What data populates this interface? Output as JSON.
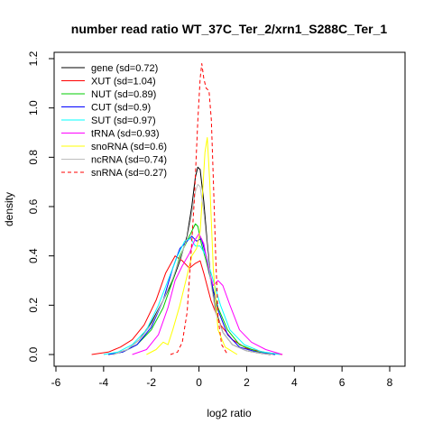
{
  "chart_data": {
    "type": "line",
    "title": "number read ratio WT_37C_Ter_2/xrn1_S288C_Ter_1",
    "xlabel": "log2 ratio",
    "ylabel": "density",
    "xlim": [
      -6,
      8
    ],
    "ylim": [
      0,
      1.2
    ],
    "x_ticks": [
      -6,
      -4,
      -2,
      0,
      2,
      4,
      6,
      8
    ],
    "y_ticks": [
      0.0,
      0.2,
      0.4,
      0.6,
      0.8,
      1.0,
      1.2
    ],
    "x_tick_labels": [
      "-6",
      "-4",
      "-2",
      "0",
      "2",
      "4",
      "6",
      "8"
    ],
    "y_tick_labels": [
      "0.0",
      "0.2",
      "0.4",
      "0.6",
      "0.8",
      "1.0",
      "1.2"
    ],
    "legend_position": "top-left",
    "grid": false,
    "series": [
      {
        "name": "gene (sd=0.72)",
        "color": "#000000",
        "dash": "solid",
        "points": [
          [
            -3.6,
            0
          ],
          [
            -3.0,
            0.02
          ],
          [
            -2.5,
            0.06
          ],
          [
            -2.0,
            0.13
          ],
          [
            -1.5,
            0.22
          ],
          [
            -1.1,
            0.3
          ],
          [
            -0.8,
            0.38
          ],
          [
            -0.5,
            0.48
          ],
          [
            -0.3,
            0.6
          ],
          [
            -0.15,
            0.72
          ],
          [
            -0.05,
            0.76
          ],
          [
            0.05,
            0.75
          ],
          [
            0.2,
            0.62
          ],
          [
            0.35,
            0.45
          ],
          [
            0.5,
            0.3
          ],
          [
            0.7,
            0.18
          ],
          [
            1.0,
            0.09
          ],
          [
            1.4,
            0.04
          ],
          [
            2.0,
            0.015
          ],
          [
            2.6,
            0.005
          ],
          [
            3.0,
            0
          ]
        ]
      },
      {
        "name": "XUT (sd=1.04)",
        "color": "#ff0000",
        "dash": "solid",
        "points": [
          [
            -4.5,
            0
          ],
          [
            -3.8,
            0.01
          ],
          [
            -3.3,
            0.03
          ],
          [
            -2.8,
            0.06
          ],
          [
            -2.3,
            0.12
          ],
          [
            -1.8,
            0.22
          ],
          [
            -1.4,
            0.33
          ],
          [
            -1.0,
            0.4
          ],
          [
            -0.7,
            0.38
          ],
          [
            -0.4,
            0.35
          ],
          [
            -0.15,
            0.37
          ],
          [
            0.05,
            0.38
          ],
          [
            0.2,
            0.33
          ],
          [
            0.5,
            0.22
          ],
          [
            0.9,
            0.12
          ],
          [
            1.4,
            0.06
          ],
          [
            2.0,
            0.025
          ],
          [
            2.8,
            0.008
          ],
          [
            3.5,
            0
          ]
        ]
      },
      {
        "name": "NUT (sd=0.89)",
        "color": "#00cc00",
        "dash": "solid",
        "points": [
          [
            -3.8,
            0
          ],
          [
            -3.2,
            0.01
          ],
          [
            -2.6,
            0.04
          ],
          [
            -2.0,
            0.1
          ],
          [
            -1.5,
            0.19
          ],
          [
            -1.1,
            0.3
          ],
          [
            -0.8,
            0.4
          ],
          [
            -0.5,
            0.46
          ],
          [
            -0.3,
            0.5
          ],
          [
            -0.15,
            0.53
          ],
          [
            -0.05,
            0.52
          ],
          [
            0.1,
            0.45
          ],
          [
            0.3,
            0.38
          ],
          [
            0.5,
            0.3
          ],
          [
            0.8,
            0.19
          ],
          [
            1.2,
            0.1
          ],
          [
            1.7,
            0.04
          ],
          [
            2.5,
            0.01
          ],
          [
            3.2,
            0
          ]
        ]
      },
      {
        "name": "CUT (sd=0.9)",
        "color": "#0000ff",
        "dash": "solid",
        "points": [
          [
            -3.8,
            0
          ],
          [
            -3.2,
            0.01
          ],
          [
            -2.6,
            0.04
          ],
          [
            -2.0,
            0.11
          ],
          [
            -1.5,
            0.22
          ],
          [
            -1.1,
            0.35
          ],
          [
            -0.8,
            0.43
          ],
          [
            -0.5,
            0.46
          ],
          [
            -0.3,
            0.48
          ],
          [
            -0.1,
            0.46
          ],
          [
            0.1,
            0.47
          ],
          [
            0.3,
            0.4
          ],
          [
            0.5,
            0.3
          ],
          [
            0.8,
            0.18
          ],
          [
            1.2,
            0.08
          ],
          [
            1.7,
            0.03
          ],
          [
            2.5,
            0.008
          ],
          [
            3.2,
            0
          ]
        ]
      },
      {
        "name": "SUT (sd=0.97)",
        "color": "#00ffff",
        "dash": "solid",
        "points": [
          [
            -4.0,
            0
          ],
          [
            -3.4,
            0.01
          ],
          [
            -2.8,
            0.04
          ],
          [
            -2.2,
            0.1
          ],
          [
            -1.7,
            0.2
          ],
          [
            -1.3,
            0.3
          ],
          [
            -0.9,
            0.4
          ],
          [
            -0.6,
            0.46
          ],
          [
            -0.35,
            0.47
          ],
          [
            -0.15,
            0.44
          ],
          [
            0.05,
            0.44
          ],
          [
            0.3,
            0.4
          ],
          [
            0.6,
            0.3
          ],
          [
            0.9,
            0.2
          ],
          [
            1.3,
            0.1
          ],
          [
            1.9,
            0.04
          ],
          [
            2.6,
            0.012
          ],
          [
            3.4,
            0
          ]
        ]
      },
      {
        "name": "tRNA (sd=0.93)",
        "color": "#ff00ff",
        "dash": "solid",
        "points": [
          [
            -2.8,
            0
          ],
          [
            -2.2,
            0.02
          ],
          [
            -1.7,
            0.08
          ],
          [
            -1.3,
            0.19
          ],
          [
            -1.0,
            0.3
          ],
          [
            -0.7,
            0.36
          ],
          [
            -0.4,
            0.41
          ],
          [
            -0.2,
            0.46
          ],
          [
            0.0,
            0.49
          ],
          [
            0.2,
            0.45
          ],
          [
            0.4,
            0.35
          ],
          [
            0.6,
            0.28
          ],
          [
            0.8,
            0.3
          ],
          [
            1.0,
            0.28
          ],
          [
            1.3,
            0.2
          ],
          [
            1.7,
            0.1
          ],
          [
            2.2,
            0.05
          ],
          [
            2.8,
            0.02
          ],
          [
            3.5,
            0
          ]
        ]
      },
      {
        "name": "snoRNA (sd=0.6)",
        "color": "#ffff00",
        "dash": "solid",
        "points": [
          [
            -2.2,
            0
          ],
          [
            -1.8,
            0.02
          ],
          [
            -1.5,
            0.05
          ],
          [
            -1.3,
            0.04
          ],
          [
            -1.1,
            0.1
          ],
          [
            -0.8,
            0.2
          ],
          [
            -0.5,
            0.32
          ],
          [
            -0.3,
            0.4
          ],
          [
            -0.1,
            0.43
          ],
          [
            0.05,
            0.5
          ],
          [
            0.15,
            0.65
          ],
          [
            0.25,
            0.82
          ],
          [
            0.35,
            0.88
          ],
          [
            0.45,
            0.7
          ],
          [
            0.6,
            0.35
          ],
          [
            0.8,
            0.1
          ],
          [
            1.1,
            0.03
          ],
          [
            1.6,
            0
          ]
        ]
      },
      {
        "name": "ncRNA (sd=0.74)",
        "color": "#bebebe",
        "dash": "solid",
        "points": [
          [
            -3.6,
            0
          ],
          [
            -3.0,
            0.02
          ],
          [
            -2.5,
            0.06
          ],
          [
            -2.0,
            0.12
          ],
          [
            -1.5,
            0.22
          ],
          [
            -1.1,
            0.31
          ],
          [
            -0.8,
            0.39
          ],
          [
            -0.5,
            0.47
          ],
          [
            -0.3,
            0.57
          ],
          [
            -0.15,
            0.66
          ],
          [
            -0.05,
            0.69
          ],
          [
            0.05,
            0.68
          ],
          [
            0.2,
            0.58
          ],
          [
            0.35,
            0.43
          ],
          [
            0.5,
            0.29
          ],
          [
            0.7,
            0.17
          ],
          [
            1.0,
            0.09
          ],
          [
            1.4,
            0.04
          ],
          [
            2.0,
            0.015
          ],
          [
            2.7,
            0.004
          ],
          [
            3.1,
            0
          ]
        ]
      },
      {
        "name": "snRNA (sd=0.27)",
        "color": "#ff0000",
        "dash": "dashed",
        "points": [
          [
            -1.2,
            0
          ],
          [
            -0.9,
            0.01
          ],
          [
            -0.7,
            0.05
          ],
          [
            -0.5,
            0.17
          ],
          [
            -0.35,
            0.38
          ],
          [
            -0.2,
            0.62
          ],
          [
            -0.05,
            0.95
          ],
          [
            0.05,
            1.12
          ],
          [
            0.12,
            1.18
          ],
          [
            0.2,
            1.12
          ],
          [
            0.3,
            1.08
          ],
          [
            0.42,
            1.07
          ],
          [
            0.52,
            0.95
          ],
          [
            0.6,
            0.72
          ],
          [
            0.7,
            0.4
          ],
          [
            0.8,
            0.15
          ],
          [
            0.95,
            0.04
          ],
          [
            1.2,
            0
          ]
        ]
      }
    ]
  }
}
